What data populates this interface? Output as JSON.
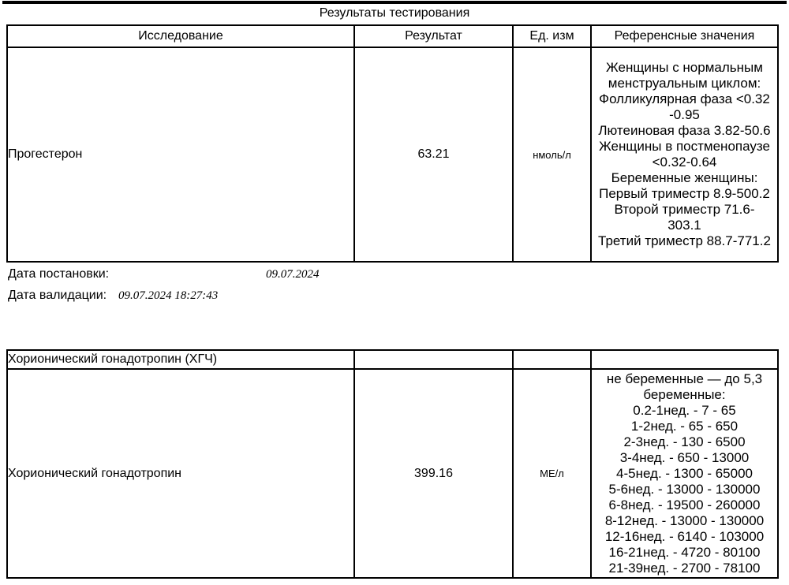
{
  "page": {
    "title": "Результаты тестирования"
  },
  "colors": {
    "text": "#000000",
    "border": "#000000",
    "background": "#ffffff"
  },
  "table1": {
    "headers": [
      "Исследование",
      "Результат",
      "Ед. изм",
      "Референсные значения"
    ],
    "row": {
      "name": "Прогестерон",
      "result": "63.21",
      "units": "нмоль/л",
      "reference_lines": [
        "Женщины с нормальным",
        "менструальным циклом:",
        "Фолликулярная фаза <0.32",
        "-0.95",
        "Лютеиновая фаза 3.82-50.6",
        "Женщины в постменопаузе",
        "<0.32-0.64",
        "Беременные женщины:",
        "Первый триместр 8.9-500.2",
        "Второй триместр 71.6-",
        "303.1",
        "Третий триместр 88.7-771.2"
      ]
    }
  },
  "dates": {
    "placement_label": "Дата постановки:",
    "placement_value": "09.07.2024",
    "validation_label": "Дата валидации:",
    "validation_value": "09.07.2024 18:27:43"
  },
  "table2": {
    "group_title": "Хорионический гонадотропин (ХГЧ)",
    "row": {
      "name": "Хорионический гонадотропин",
      "result": "399.16",
      "units": "МЕ/л",
      "reference_lines": [
        "не беременные — до 5,3",
        "беременные:",
        "0.2-1нед. - 7 - 65",
        "1-2нед. - 65 - 650",
        "2-3нед. - 130 - 6500",
        "3-4нед. - 650 - 13000",
        "4-5нед. - 1300 - 65000",
        "5-6нед. - 13000 - 130000",
        "6-8нед. - 19500 - 260000",
        "8-12нед. - 13000 - 130000",
        "12-16нед. - 6140 - 103000",
        "16-21нед. - 4720 - 80100",
        "21-39нед. - 2700 - 78100"
      ]
    }
  }
}
